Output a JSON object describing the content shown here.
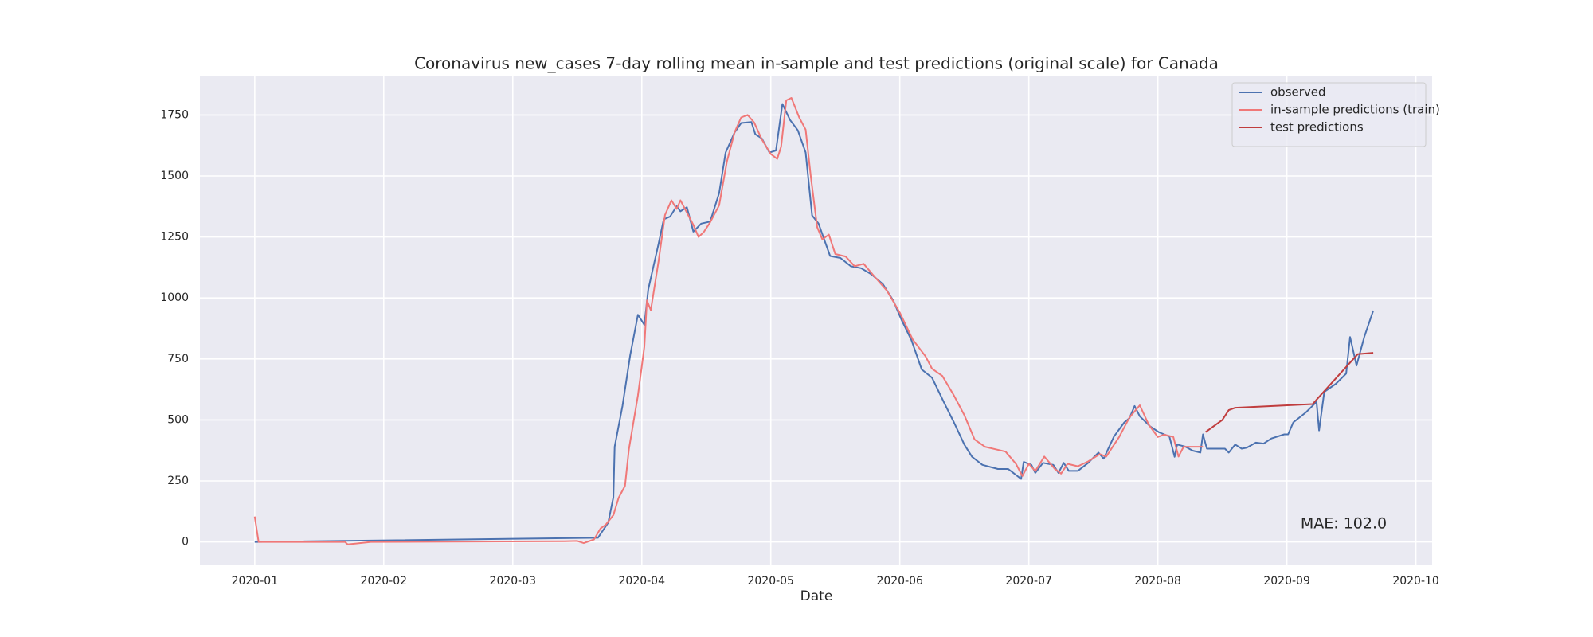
{
  "chart_data": {
    "type": "line",
    "title": "Coronavirus new_cases 7-day rolling mean in-sample and test predictions (original scale) for Canada",
    "x_label": "Date",
    "annotation": "MAE: 102.0",
    "xlim": [
      -0.425,
      9.126
    ],
    "xticks": [
      {
        "value": 0,
        "label": "2020-01"
      },
      {
        "value": 1,
        "label": "2020-02"
      },
      {
        "value": 2,
        "label": "2020-03"
      },
      {
        "value": 3,
        "label": "2020-04"
      },
      {
        "value": 4,
        "label": "2020-05"
      },
      {
        "value": 5,
        "label": "2020-06"
      },
      {
        "value": 6,
        "label": "2020-07"
      },
      {
        "value": 7,
        "label": "2020-08"
      },
      {
        "value": 8,
        "label": "2020-09"
      },
      {
        "value": 9,
        "label": "2020-10"
      }
    ],
    "ylim": [
      -96,
      1908
    ],
    "yticks": [
      0,
      250,
      500,
      750,
      1000,
      1250,
      1500,
      1750
    ],
    "grid": true,
    "legend": "upper right",
    "series": [
      {
        "name": "observed",
        "color": "#4c72b0",
        "x": [
          0,
          2.66,
          2.74,
          2.78,
          2.79,
          2.85,
          2.91,
          2.97,
          3.02,
          3.05,
          3.13,
          3.17,
          3.22,
          3.27,
          3.3,
          3.35,
          3.4,
          3.46,
          3.53,
          3.6,
          3.65,
          3.72,
          3.77,
          3.85,
          3.88,
          3.93,
          3.99,
          4.04,
          4.09,
          4.15,
          4.21,
          4.27,
          4.32,
          4.37,
          4.46,
          4.54,
          4.62,
          4.7,
          4.78,
          4.87,
          4.95,
          5.01,
          5.09,
          5.17,
          5.25,
          5.34,
          5.42,
          5.5,
          5.56,
          5.64,
          5.76,
          5.84,
          5.87,
          5.94,
          5.96,
          6.02,
          6.05,
          6.11,
          6.19,
          6.23,
          6.27,
          6.31,
          6.38,
          6.46,
          6.54,
          6.58,
          6.66,
          6.74,
          6.78,
          6.82,
          6.86,
          6.94,
          7.01,
          7.09,
          7.13,
          7.15,
          7.21,
          7.27,
          7.33,
          7.35,
          7.38,
          7.44,
          7.52,
          7.55,
          7.6,
          7.65,
          7.69,
          7.76,
          7.82,
          7.88,
          7.98,
          8.01,
          8.05,
          8.15,
          8.23,
          8.25,
          8.29,
          8.38,
          8.46,
          8.49,
          8.54,
          8.6,
          8.67
        ],
        "values": [
          0,
          17,
          79,
          183,
          390,
          557,
          765,
          931,
          890,
          1035,
          1222,
          1322,
          1334,
          1376,
          1355,
          1372,
          1272,
          1305,
          1313,
          1430,
          1596,
          1679,
          1717,
          1721,
          1671,
          1654,
          1596,
          1604,
          1795,
          1729,
          1687,
          1596,
          1338,
          1305,
          1172,
          1164,
          1130,
          1122,
          1097,
          1056,
          989,
          914,
          827,
          707,
          673,
          574,
          490,
          399,
          349,
          316,
          299,
          299,
          287,
          258,
          328,
          316,
          283,
          324,
          316,
          283,
          324,
          291,
          291,
          324,
          366,
          341,
          432,
          490,
          507,
          557,
          515,
          474,
          449,
          432,
          349,
          399,
          391,
          374,
          366,
          441,
          382,
          382,
          382,
          366,
          399,
          382,
          386,
          407,
          403,
          424,
          441,
          441,
          490,
          532,
          574,
          457,
          615,
          648,
          690,
          840,
          723,
          840,
          948
        ]
      },
      {
        "name": "in-sample predictions (train)",
        "color": "#f07878",
        "x": [
          0,
          0.03,
          0.7,
          0.72,
          0.9,
          2.4,
          2.5,
          2.55,
          2.63,
          2.68,
          2.72,
          2.78,
          2.82,
          2.87,
          2.9,
          2.97,
          3.02,
          3.04,
          3.07,
          3.13,
          3.18,
          3.23,
          3.27,
          3.3,
          3.35,
          3.4,
          3.44,
          3.48,
          3.53,
          3.6,
          3.66,
          3.72,
          3.77,
          3.82,
          3.87,
          3.93,
          4.0,
          4.05,
          4.08,
          4.12,
          4.16,
          4.22,
          4.27,
          4.31,
          4.36,
          4.4,
          4.45,
          4.5,
          4.58,
          4.65,
          4.72,
          4.8,
          4.9,
          5.0,
          5.1,
          5.2,
          5.25,
          5.33,
          5.42,
          5.5,
          5.58,
          5.66,
          5.74,
          5.82,
          5.9,
          5.95,
          6.0,
          6.05,
          6.12,
          6.2,
          6.25,
          6.3,
          6.38,
          6.46,
          6.55,
          6.6,
          6.7,
          6.78,
          6.86,
          6.93,
          7.0,
          7.05,
          7.12,
          7.16,
          7.2,
          7.28,
          7.35
        ],
        "values": [
          104,
          0,
          0,
          -10,
          0,
          3,
          4,
          -5,
          10,
          55,
          70,
          110,
          180,
          230,
          380,
          600,
          800,
          990,
          950,
          1150,
          1340,
          1400,
          1365,
          1400,
          1350,
          1300,
          1250,
          1270,
          1310,
          1380,
          1560,
          1680,
          1740,
          1750,
          1720,
          1650,
          1590,
          1570,
          1620,
          1810,
          1820,
          1740,
          1690,
          1500,
          1290,
          1240,
          1260,
          1180,
          1170,
          1130,
          1140,
          1090,
          1030,
          940,
          830,
          760,
          710,
          680,
          600,
          520,
          420,
          390,
          380,
          370,
          320,
          270,
          320,
          290,
          350,
          300,
          280,
          320,
          310,
          330,
          360,
          350,
          430,
          510,
          560,
          480,
          430,
          440,
          430,
          350,
          390,
          390,
          390
        ]
      },
      {
        "name": "test predictions",
        "color": "#c03d3e",
        "x": [
          7.37,
          7.5,
          7.55,
          7.6,
          8.2,
          8.55,
          8.67
        ],
        "values": [
          450,
          500,
          540,
          550,
          565,
          770,
          775
        ]
      }
    ]
  }
}
